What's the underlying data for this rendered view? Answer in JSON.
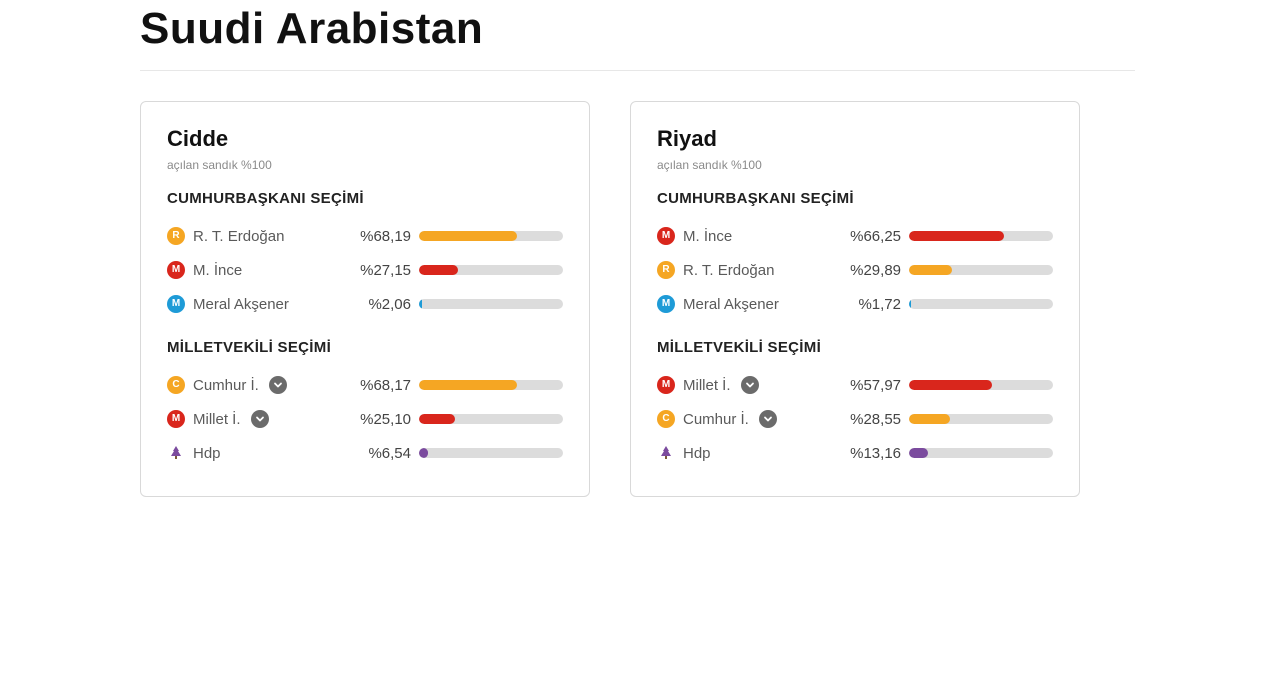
{
  "title": "Suudi Arabistan",
  "bar_track_color": "#dcdcdc",
  "section_labels": {
    "president": "CUMHURBAŞKANI SEÇİMİ",
    "parliament": "MİLLETVEKİLİ SEÇİMİ"
  },
  "cards": [
    {
      "city": "Cidde",
      "subtitle": "açılan sandık %100",
      "president": [
        {
          "badge_letter": "R",
          "badge_color": "#f5a623",
          "name": "R. T. Erdoğan",
          "pct_text": "%68,19",
          "pct_value": 68.19,
          "bar_color": "#f5a623"
        },
        {
          "badge_letter": "M",
          "badge_color": "#d9261c",
          "name": "M. İnce",
          "pct_text": "%27,15",
          "pct_value": 27.15,
          "bar_color": "#d9261c"
        },
        {
          "badge_letter": "M",
          "badge_color": "#1e9bd7",
          "name": "Meral Akşener",
          "pct_text": "%2,06",
          "pct_value": 2.06,
          "bar_color": "#1e9bd7"
        }
      ],
      "parliament": [
        {
          "badge_letter": "C",
          "badge_color": "#f5a623",
          "name": "Cumhur İ.",
          "pct_text": "%68,17",
          "pct_value": 68.17,
          "bar_color": "#f5a623",
          "expandable": true
        },
        {
          "badge_letter": "M",
          "badge_color": "#d9261c",
          "name": "Millet İ.",
          "pct_text": "%25,10",
          "pct_value": 25.1,
          "bar_color": "#d9261c",
          "expandable": true
        },
        {
          "icon": "tree",
          "icon_color": "#7b4b9e",
          "name": "Hdp",
          "pct_text": "%6,54",
          "pct_value": 6.54,
          "bar_color": "#7b4b9e"
        }
      ]
    },
    {
      "city": "Riyad",
      "subtitle": "açılan sandık %100",
      "president": [
        {
          "badge_letter": "M",
          "badge_color": "#d9261c",
          "name": "M. İnce",
          "pct_text": "%66,25",
          "pct_value": 66.25,
          "bar_color": "#d9261c"
        },
        {
          "badge_letter": "R",
          "badge_color": "#f5a623",
          "name": "R. T. Erdoğan",
          "pct_text": "%29,89",
          "pct_value": 29.89,
          "bar_color": "#f5a623"
        },
        {
          "badge_letter": "M",
          "badge_color": "#1e9bd7",
          "name": "Meral Akşener",
          "pct_text": "%1,72",
          "pct_value": 1.72,
          "bar_color": "#1e9bd7"
        }
      ],
      "parliament": [
        {
          "badge_letter": "M",
          "badge_color": "#d9261c",
          "name": "Millet İ.",
          "pct_text": "%57,97",
          "pct_value": 57.97,
          "bar_color": "#d9261c",
          "expandable": true
        },
        {
          "badge_letter": "C",
          "badge_color": "#f5a623",
          "name": "Cumhur İ.",
          "pct_text": "%28,55",
          "pct_value": 28.55,
          "bar_color": "#f5a623",
          "expandable": true
        },
        {
          "icon": "tree",
          "icon_color": "#7b4b9e",
          "name": "Hdp",
          "pct_text": "%13,16",
          "pct_value": 13.16,
          "bar_color": "#7b4b9e"
        }
      ]
    }
  ]
}
